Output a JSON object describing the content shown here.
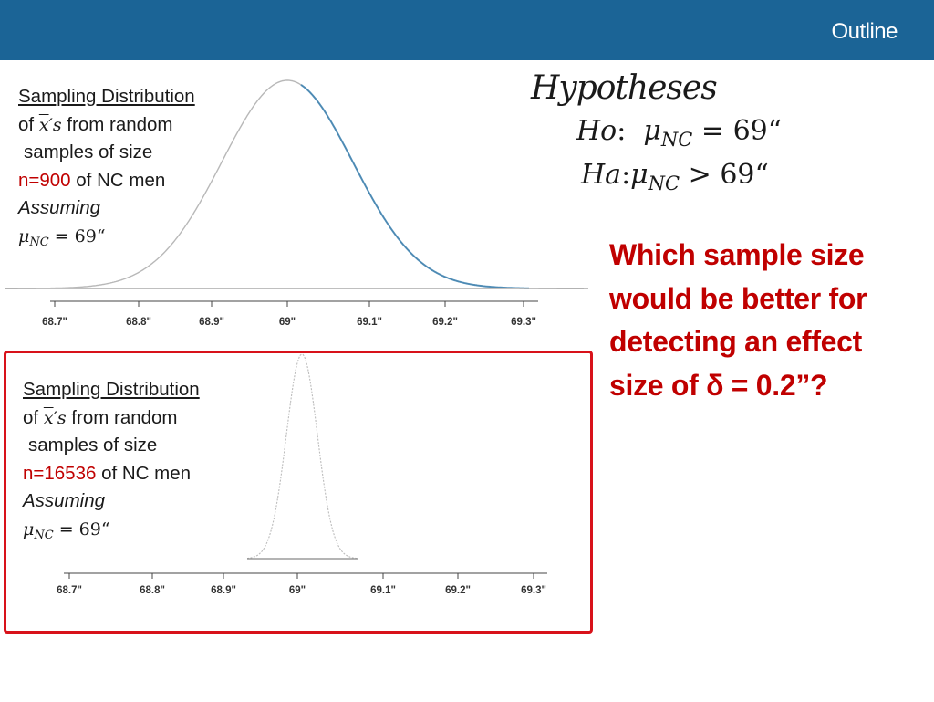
{
  "header": {
    "bar_color": "#1b6496",
    "outline_label": "Outline"
  },
  "panel1": {
    "line1": "Sampling Distribution",
    "line2_prefix": "of",
    "line2_xbar": "x",
    "line2_suffix": "′s",
    "line2_rest": " from random",
    "line3": "samples of size",
    "line4_n": "n=900",
    "line4_rest": " of NC men",
    "line5": "Assuming",
    "line6_mu": "μ",
    "line6_sub": "NC",
    "line6_eq": " = 69“",
    "axis_ticks": [
      "68.7\"",
      "68.8\"",
      "68.9\"",
      "69\"",
      "69.1\"",
      "69.2\"",
      "69.3\""
    ]
  },
  "panel2": {
    "line1": "Sampling Distribution",
    "line2_prefix": "of",
    "line2_xbar": "x",
    "line2_suffix": "′s",
    "line2_rest": " from random",
    "line3": "samples of size",
    "line4_n": "n=16536",
    "line4_rest": " of NC men",
    "line5": "Assuming",
    "line6_mu": "μ",
    "line6_sub": "NC",
    "line6_eq": " = 69“",
    "axis_ticks": [
      "68.7\"",
      "68.8\"",
      "68.9\"",
      "69\"",
      "69.1\"",
      "69.2\"",
      "69.3\""
    ]
  },
  "hypotheses": {
    "title": "Hypotheses",
    "ho_label": "Ho",
    "ho_mu": "μ",
    "ho_sub": "NC",
    "ho_rest": " = 69“",
    "ha_label": "Ha",
    "ha_mu": "μ",
    "ha_sub": "NC",
    "ha_rest": " > 69“"
  },
  "question": {
    "line1": "Which sample size",
    "line2": "would be better for",
    "line3": "detecting an effect",
    "line4": "size of δ = 0.2”?"
  },
  "colors": {
    "question_red": "#c00000",
    "box_red": "#d8121a",
    "curve_blue": "#2a7ab0"
  }
}
